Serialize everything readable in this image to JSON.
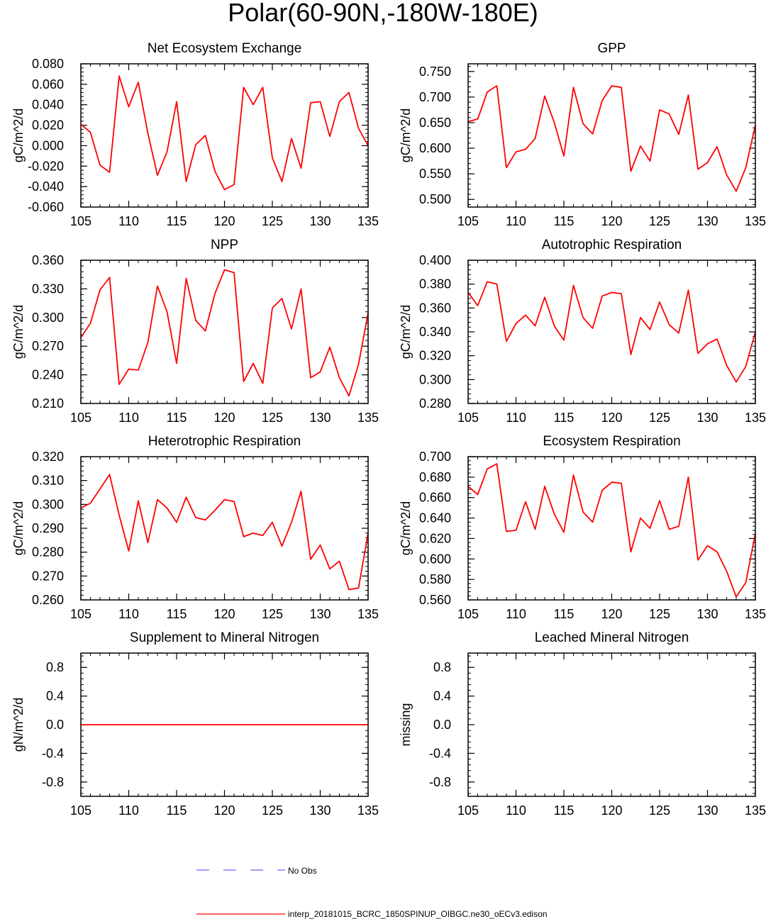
{
  "page": {
    "title": "Polar(60-90N,-180W-180E)"
  },
  "colors": {
    "model_line": "#ff0000",
    "obs_line": "#6666ff",
    "axis": "#000000",
    "background": "#ffffff"
  },
  "legend": {
    "obs_label": "No Obs",
    "model_label": "interp_20181015_BCRC_1850SPINUP_OIBGC.ne30_oECv3.edison"
  },
  "chart_data": [
    {
      "id": "nee",
      "type": "line",
      "title": "Net Ecosystem Exchange",
      "xlabel": "",
      "ylabel": "gC/m^2/d",
      "xlim": [
        105,
        135
      ],
      "ylim": [
        -0.06,
        0.08
      ],
      "xticks": [
        105,
        110,
        115,
        120,
        125,
        130,
        135
      ],
      "xtick_labels": [
        "105",
        "110",
        "115",
        "120",
        "125",
        "130",
        "135"
      ],
      "yticks": [
        -0.06,
        -0.04,
        -0.02,
        0.0,
        0.02,
        0.04,
        0.06,
        0.08
      ],
      "ytick_labels": [
        "-0.060",
        "-0.040",
        "-0.020",
        "0.000",
        "0.020",
        "0.040",
        "0.060",
        "0.080"
      ],
      "x": [
        105,
        106,
        107,
        108,
        109,
        110,
        111,
        112,
        113,
        114,
        115,
        116,
        117,
        118,
        119,
        120,
        121,
        122,
        123,
        124,
        125,
        126,
        127,
        128,
        129,
        130,
        131,
        132,
        133,
        134,
        135
      ],
      "series": [
        {
          "name": "interp_20181015_BCRC_1850SPINUP_OIBGC.ne30_oECv3.edison",
          "values": [
            0.021,
            0.013,
            -0.019,
            -0.026,
            0.068,
            0.038,
            0.062,
            0.012,
            -0.029,
            -0.006,
            0.043,
            -0.035,
            0.001,
            0.01,
            -0.025,
            -0.043,
            -0.038,
            0.057,
            0.04,
            0.057,
            -0.012,
            -0.035,
            0.007,
            -0.022,
            0.042,
            0.043,
            0.009,
            0.043,
            0.052,
            0.017,
            0.0
          ]
        }
      ]
    },
    {
      "id": "gpp",
      "type": "line",
      "title": "GPP",
      "xlabel": "",
      "ylabel": "gC/m^2/d",
      "xlim": [
        105,
        135
      ],
      "ylim": [
        0.485,
        0.765
      ],
      "xticks": [
        105,
        110,
        115,
        120,
        125,
        130,
        135
      ],
      "xtick_labels": [
        "105",
        "110",
        "115",
        "120",
        "125",
        "130",
        "135"
      ],
      "yticks": [
        0.5,
        0.55,
        0.6,
        0.65,
        0.7,
        0.75
      ],
      "ytick_labels": [
        "0.500",
        "0.550",
        "0.600",
        "0.650",
        "0.700",
        "0.750"
      ],
      "x": [
        105,
        106,
        107,
        108,
        109,
        110,
        111,
        112,
        113,
        114,
        115,
        116,
        117,
        118,
        119,
        120,
        121,
        122,
        123,
        124,
        125,
        126,
        127,
        128,
        129,
        130,
        131,
        132,
        133,
        134,
        135
      ],
      "series": [
        {
          "name": "interp_20181015_BCRC_1850SPINUP_OIBGC.ne30_oECv3.edison",
          "values": [
            0.652,
            0.657,
            0.71,
            0.722,
            0.562,
            0.593,
            0.598,
            0.619,
            0.702,
            0.65,
            0.585,
            0.719,
            0.648,
            0.628,
            0.693,
            0.722,
            0.719,
            0.555,
            0.604,
            0.575,
            0.675,
            0.667,
            0.627,
            0.704,
            0.559,
            0.572,
            0.603,
            0.548,
            0.516,
            0.562,
            0.645
          ]
        }
      ]
    },
    {
      "id": "npp",
      "type": "line",
      "title": "NPP",
      "xlabel": "",
      "ylabel": "gC/m^2/d",
      "xlim": [
        105,
        135
      ],
      "ylim": [
        0.21,
        0.36
      ],
      "xticks": [
        105,
        110,
        115,
        120,
        125,
        130,
        135
      ],
      "xtick_labels": [
        "105",
        "110",
        "115",
        "120",
        "125",
        "130",
        "135"
      ],
      "yticks": [
        0.21,
        0.24,
        0.27,
        0.3,
        0.33,
        0.36
      ],
      "ytick_labels": [
        "0.210",
        "0.240",
        "0.270",
        "0.300",
        "0.330",
        "0.360"
      ],
      "x": [
        105,
        106,
        107,
        108,
        109,
        110,
        111,
        112,
        113,
        114,
        115,
        116,
        117,
        118,
        119,
        120,
        121,
        122,
        123,
        124,
        125,
        126,
        127,
        128,
        129,
        130,
        131,
        132,
        133,
        134,
        135
      ],
      "series": [
        {
          "name": "interp_20181015_BCRC_1850SPINUP_OIBGC.ne30_oECv3.edison",
          "values": [
            0.279,
            0.294,
            0.329,
            0.342,
            0.23,
            0.246,
            0.245,
            0.274,
            0.333,
            0.306,
            0.252,
            0.341,
            0.297,
            0.286,
            0.325,
            0.35,
            0.347,
            0.233,
            0.252,
            0.231,
            0.31,
            0.32,
            0.288,
            0.33,
            0.237,
            0.243,
            0.269,
            0.237,
            0.218,
            0.251,
            0.305
          ]
        }
      ]
    },
    {
      "id": "ar",
      "type": "line",
      "title": "Autotrophic Respiration",
      "xlabel": "",
      "ylabel": "gC/m^2/d",
      "xlim": [
        105,
        135
      ],
      "ylim": [
        0.28,
        0.4
      ],
      "xticks": [
        105,
        110,
        115,
        120,
        125,
        130,
        135
      ],
      "xtick_labels": [
        "105",
        "110",
        "115",
        "120",
        "125",
        "130",
        "135"
      ],
      "yticks": [
        0.28,
        0.3,
        0.32,
        0.34,
        0.36,
        0.38,
        0.4
      ],
      "ytick_labels": [
        "0.280",
        "0.300",
        "0.320",
        "0.340",
        "0.360",
        "0.380",
        "0.400"
      ],
      "x": [
        105,
        106,
        107,
        108,
        109,
        110,
        111,
        112,
        113,
        114,
        115,
        116,
        117,
        118,
        119,
        120,
        121,
        122,
        123,
        124,
        125,
        126,
        127,
        128,
        129,
        130,
        131,
        132,
        133,
        134,
        135
      ],
      "series": [
        {
          "name": "interp_20181015_BCRC_1850SPINUP_OIBGC.ne30_oECv3.edison",
          "values": [
            0.373,
            0.362,
            0.382,
            0.38,
            0.332,
            0.347,
            0.354,
            0.345,
            0.369,
            0.345,
            0.333,
            0.379,
            0.352,
            0.343,
            0.37,
            0.373,
            0.372,
            0.321,
            0.352,
            0.342,
            0.365,
            0.346,
            0.339,
            0.375,
            0.322,
            0.33,
            0.334,
            0.312,
            0.298,
            0.311,
            0.34
          ]
        }
      ]
    },
    {
      "id": "hr",
      "type": "line",
      "title": "Heterotrophic Respiration",
      "xlabel": "",
      "ylabel": "gC/m^2/d",
      "xlim": [
        105,
        135
      ],
      "ylim": [
        0.26,
        0.32
      ],
      "xticks": [
        105,
        110,
        115,
        120,
        125,
        130,
        135
      ],
      "xtick_labels": [
        "105",
        "110",
        "115",
        "120",
        "125",
        "130",
        "135"
      ],
      "yticks": [
        0.26,
        0.27,
        0.28,
        0.29,
        0.3,
        0.31,
        0.32
      ],
      "ytick_labels": [
        "0.260",
        "0.270",
        "0.280",
        "0.290",
        "0.300",
        "0.310",
        "0.320"
      ],
      "x": [
        105,
        106,
        107,
        108,
        109,
        110,
        111,
        112,
        113,
        114,
        115,
        116,
        117,
        118,
        119,
        120,
        121,
        122,
        123,
        124,
        125,
        126,
        127,
        128,
        129,
        130,
        131,
        132,
        133,
        134,
        135
      ],
      "series": [
        {
          "name": "interp_20181015_BCRC_1850SPINUP_OIBGC.ne30_oECv3.edison",
          "values": [
            0.2985,
            0.3005,
            0.3065,
            0.3125,
            0.2955,
            0.2805,
            0.3015,
            0.284,
            0.302,
            0.2985,
            0.2925,
            0.303,
            0.2945,
            0.2935,
            0.2975,
            0.302,
            0.3012,
            0.2865,
            0.288,
            0.287,
            0.2925,
            0.2825,
            0.2925,
            0.3055,
            0.277,
            0.283,
            0.273,
            0.2762,
            0.2643,
            0.265,
            0.288
          ]
        }
      ]
    },
    {
      "id": "er",
      "type": "line",
      "title": "Ecosystem Respiration",
      "xlabel": "",
      "ylabel": "gC/m^2/d",
      "xlim": [
        105,
        135
      ],
      "ylim": [
        0.56,
        0.7
      ],
      "xticks": [
        105,
        110,
        115,
        120,
        125,
        130,
        135
      ],
      "xtick_labels": [
        "105",
        "110",
        "115",
        "120",
        "125",
        "130",
        "135"
      ],
      "yticks": [
        0.56,
        0.58,
        0.6,
        0.62,
        0.64,
        0.66,
        0.68,
        0.7
      ],
      "ytick_labels": [
        "0.560",
        "0.580",
        "0.600",
        "0.620",
        "0.640",
        "0.660",
        "0.680",
        "0.700"
      ],
      "x": [
        105,
        106,
        107,
        108,
        109,
        110,
        111,
        112,
        113,
        114,
        115,
        116,
        117,
        118,
        119,
        120,
        121,
        122,
        123,
        124,
        125,
        126,
        127,
        128,
        129,
        130,
        131,
        132,
        133,
        134,
        135
      ],
      "series": [
        {
          "name": "interp_20181015_BCRC_1850SPINUP_OIBGC.ne30_oECv3.edison",
          "values": [
            0.671,
            0.663,
            0.688,
            0.693,
            0.627,
            0.628,
            0.656,
            0.629,
            0.671,
            0.644,
            0.626,
            0.682,
            0.646,
            0.636,
            0.667,
            0.675,
            0.674,
            0.607,
            0.64,
            0.63,
            0.657,
            0.629,
            0.632,
            0.68,
            0.599,
            0.613,
            0.607,
            0.588,
            0.563,
            0.577,
            0.625
          ]
        }
      ]
    },
    {
      "id": "supn",
      "type": "line",
      "title": "Supplement to Mineral Nitrogen",
      "xlabel": "",
      "ylabel": "gN/m^2/d",
      "xlim": [
        105,
        135
      ],
      "ylim": [
        -1.0,
        1.0
      ],
      "xticks": [
        105,
        110,
        115,
        120,
        125,
        130,
        135
      ],
      "xtick_labels": [
        "105",
        "110",
        "115",
        "120",
        "125",
        "130",
        "135"
      ],
      "yticks": [
        -0.8,
        -0.4,
        0.0,
        0.4,
        0.8
      ],
      "ytick_labels": [
        "-0.8",
        "-0.4",
        "0.0",
        "0.4",
        "0.8"
      ],
      "x": [
        105,
        135
      ],
      "series": [
        {
          "name": "interp_20181015_BCRC_1850SPINUP_OIBGC.ne30_oECv3.edison",
          "values": [
            0.0,
            0.0
          ]
        }
      ]
    },
    {
      "id": "leach",
      "type": "line",
      "title": "Leached Mineral Nitrogen",
      "xlabel": "",
      "ylabel": "missing",
      "xlim": [
        105,
        135
      ],
      "ylim": [
        -1.0,
        1.0
      ],
      "xticks": [
        105,
        110,
        115,
        120,
        125,
        130,
        135
      ],
      "xtick_labels": [
        "105",
        "110",
        "115",
        "120",
        "125",
        "130",
        "135"
      ],
      "yticks": [
        -0.8,
        -0.4,
        0.0,
        0.4,
        0.8
      ],
      "ytick_labels": [
        "-0.8",
        "-0.4",
        "0.0",
        "0.4",
        "0.8"
      ],
      "x": [],
      "series": []
    }
  ]
}
